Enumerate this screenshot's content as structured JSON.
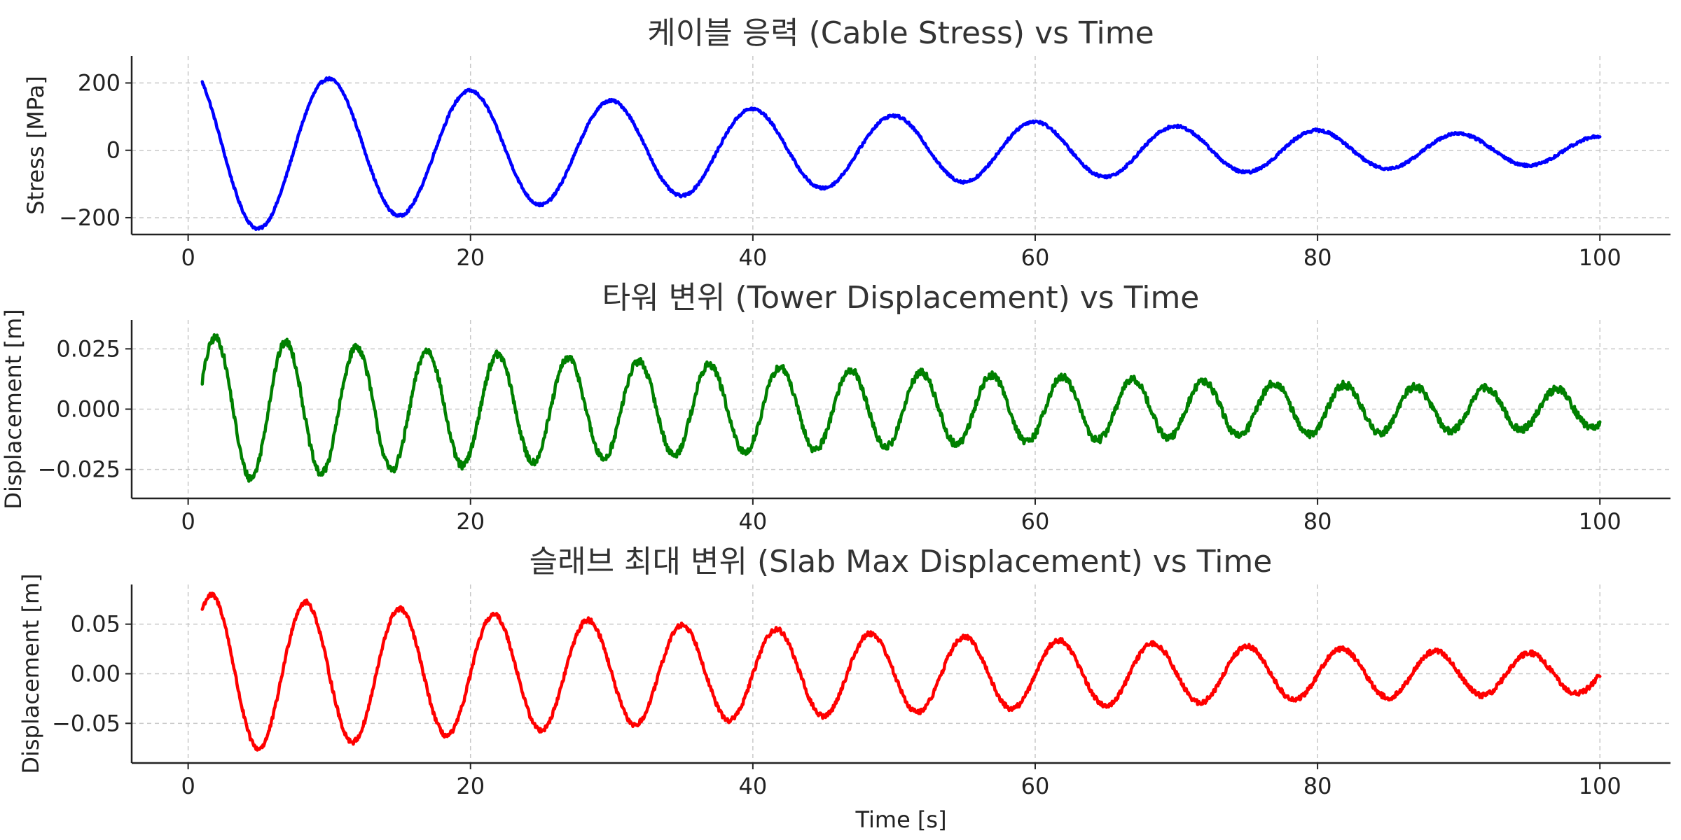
{
  "chart_data": [
    {
      "type": "line",
      "title": "케이블 응력 (Cable Stress) vs Time",
      "xlabel": "",
      "ylabel": "Stress [MPa]",
      "xlim": [
        -4,
        105
      ],
      "ylim": [
        -250,
        280
      ],
      "xticks": [
        "0",
        "20",
        "40",
        "60",
        "80",
        "100"
      ],
      "yticks": [
        "200",
        "0",
        "−200"
      ],
      "grid": true,
      "color": "#0000ff",
      "signal": {
        "t_start": 1,
        "t_end": 100,
        "amplitude": 250,
        "period": 10,
        "decay": 0.0182,
        "phase": 2.2,
        "noise": 4,
        "step": 0.05
      }
    },
    {
      "type": "line",
      "title": "타워 변위 (Tower Displacement) vs Time",
      "xlabel": "",
      "ylabel": "Displacement [m]",
      "xlim": [
        -4,
        105
      ],
      "ylim": [
        -0.037,
        0.037
      ],
      "xticks": [
        "0",
        "20",
        "40",
        "60",
        "80",
        "100"
      ],
      "yticks": [
        "0.025",
        "0.000",
        "−0.025"
      ],
      "grid": true,
      "color": "#008000",
      "signal": {
        "t_start": 1,
        "t_end": 100,
        "amplitude": 0.03,
        "period": 5,
        "decay": 0.0134,
        "phase": 0.4,
        "noise": 0.0016,
        "step": 0.05
      }
    },
    {
      "type": "line",
      "title": "슬래브 최대 변위 (Slab Max Displacement) vs Time",
      "xlabel": "Time [s]",
      "ylabel": "Displacement [m]",
      "xlim": [
        -4,
        105
      ],
      "ylim": [
        -0.09,
        0.09
      ],
      "xticks": [
        "0",
        "20",
        "40",
        "60",
        "80",
        "100"
      ],
      "yticks": [
        "0.05",
        "0.00",
        "−0.05"
      ],
      "grid": true,
      "color": "#ff0000",
      "signal": {
        "t_start": 1,
        "t_end": 100,
        "amplitude": 0.08,
        "period": 6.67,
        "decay": 0.0143,
        "phase": 0.95,
        "noise": 0.0025,
        "step": 0.05
      }
    }
  ]
}
